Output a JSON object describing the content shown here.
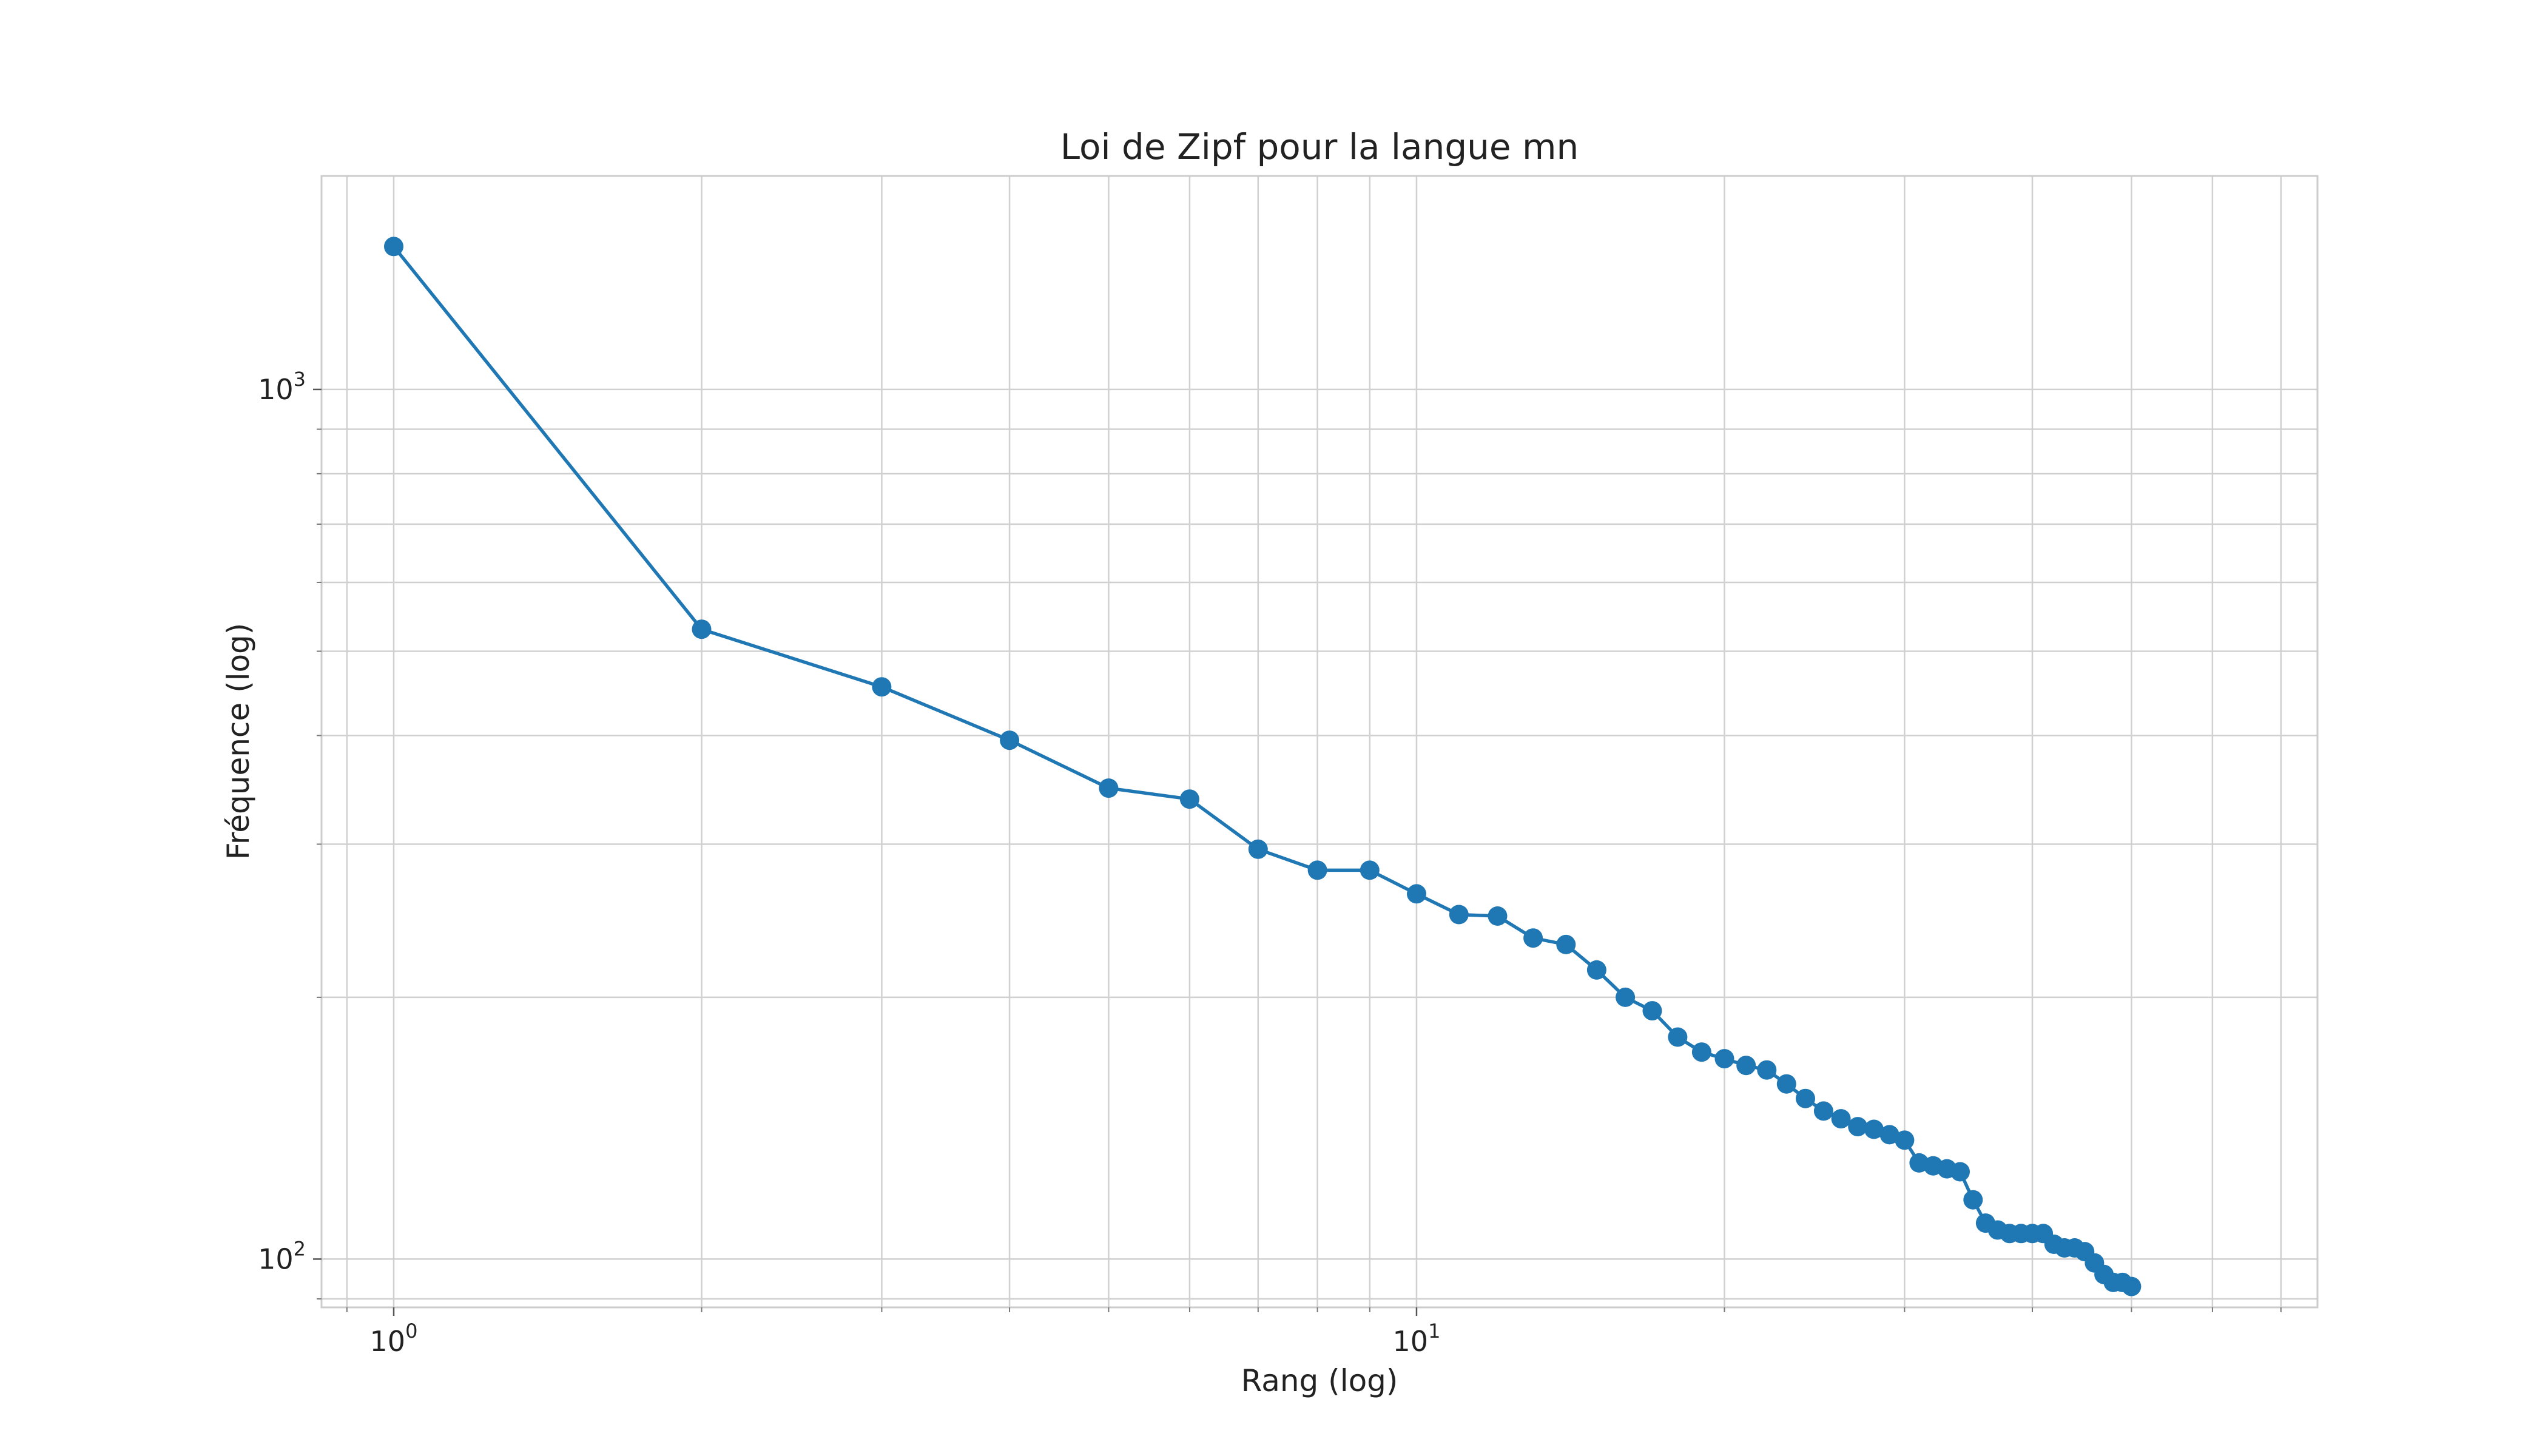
{
  "chart_data": {
    "type": "line",
    "title": "Loi de Zipf pour la langue mn",
    "xlabel": "Rang (log)",
    "ylabel": "Fréquence (log)",
    "xscale": "log",
    "yscale": "log",
    "xlim": [
      0.85,
      76
    ],
    "ylim": [
      88,
      1760
    ],
    "grid": true,
    "x_ticks": [
      {
        "value": 1,
        "base": "10",
        "exp": "0"
      },
      {
        "value": 10,
        "base": "10",
        "exp": "1"
      }
    ],
    "y_ticks": [
      {
        "value": 100,
        "base": "10",
        "exp": "2"
      },
      {
        "value": 1000,
        "base": "10",
        "exp": "3"
      }
    ],
    "marker": "circle",
    "color": "#1f77b4",
    "series": [
      {
        "x": [
          1,
          2,
          3,
          4,
          5,
          6,
          7,
          8,
          9,
          10,
          11,
          12,
          13,
          14,
          15,
          16,
          17,
          18,
          19,
          20,
          21,
          22,
          23,
          24,
          25,
          26,
          27,
          28,
          29,
          30,
          31,
          32,
          33,
          34,
          35,
          36,
          37,
          38,
          39,
          40,
          41,
          42,
          43,
          44,
          45,
          46,
          47,
          48,
          49,
          50
        ],
        "values": [
          1460,
          530,
          455,
          395,
          348,
          338,
          296,
          280,
          280,
          263,
          249,
          248,
          234,
          230,
          215,
          200,
          193,
          180,
          173,
          170,
          167,
          165,
          159,
          153,
          148,
          145,
          142,
          141,
          139,
          137,
          129,
          128,
          127,
          126,
          117,
          110,
          108,
          107,
          107,
          107,
          107,
          104,
          103,
          103,
          102,
          99,
          96,
          94,
          94,
          93
        ]
      }
    ]
  }
}
